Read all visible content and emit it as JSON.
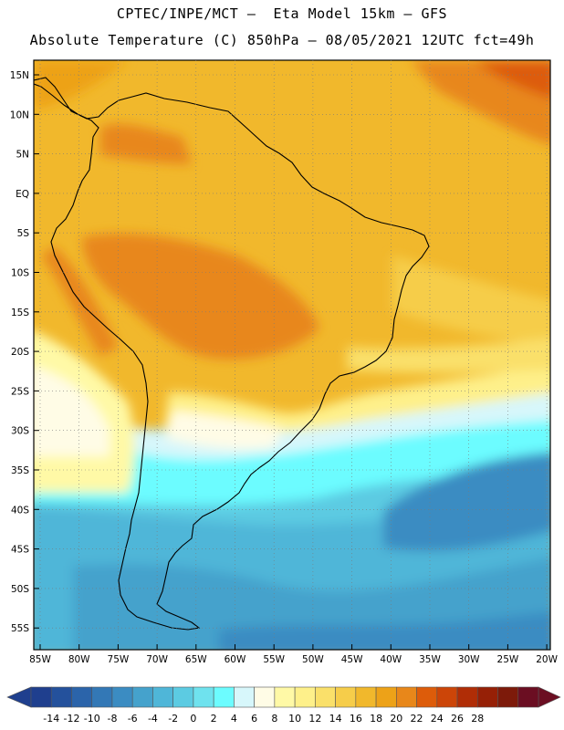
{
  "header": {
    "title_line1": "CPTEC/INPE/MCT –  Eta Model 15km – GFS",
    "title_line2": "Absolute Temperature (C) 850hPa – 08/05/2021 12UTC fct=49h"
  },
  "map": {
    "lat_ticks": [
      "15N",
      "10N",
      "5N",
      "EQ",
      "5S",
      "10S",
      "15S",
      "20S",
      "25S",
      "30S",
      "35S",
      "40S",
      "45S",
      "50S",
      "55S"
    ],
    "lon_ticks": [
      "85W",
      "80W",
      "75W",
      "70W",
      "65W",
      "60W",
      "55W",
      "50W",
      "45W",
      "40W",
      "35W",
      "30W",
      "25W",
      "20W"
    ]
  },
  "colorbar": {
    "labels": [
      "-14",
      "-12",
      "-10",
      "-8",
      "-6",
      "-4",
      "-2",
      "0",
      "2",
      "4",
      "6",
      "8",
      "10",
      "12",
      "14",
      "16",
      "18",
      "20",
      "22",
      "24",
      "26",
      "28"
    ],
    "colors": [
      "#1f3f8e",
      "#24519c",
      "#2b64aa",
      "#3378b6",
      "#3b8cc2",
      "#45a2cc",
      "#4fb6d8",
      "#5ccbe2",
      "#6fe2ee",
      "#6cfcff",
      "#d7f7fb",
      "#fffce6",
      "#fff9a6",
      "#fef08a",
      "#fae06a",
      "#f6cd4a",
      "#f1b82c",
      "#eda218",
      "#e8871a",
      "#dd5c0a",
      "#cc4508",
      "#b02d06",
      "#962006",
      "#7d1a0a",
      "#6b0e22"
    ],
    "under_color": "#1f3f8e",
    "over_color": "#6b0e22"
  }
}
